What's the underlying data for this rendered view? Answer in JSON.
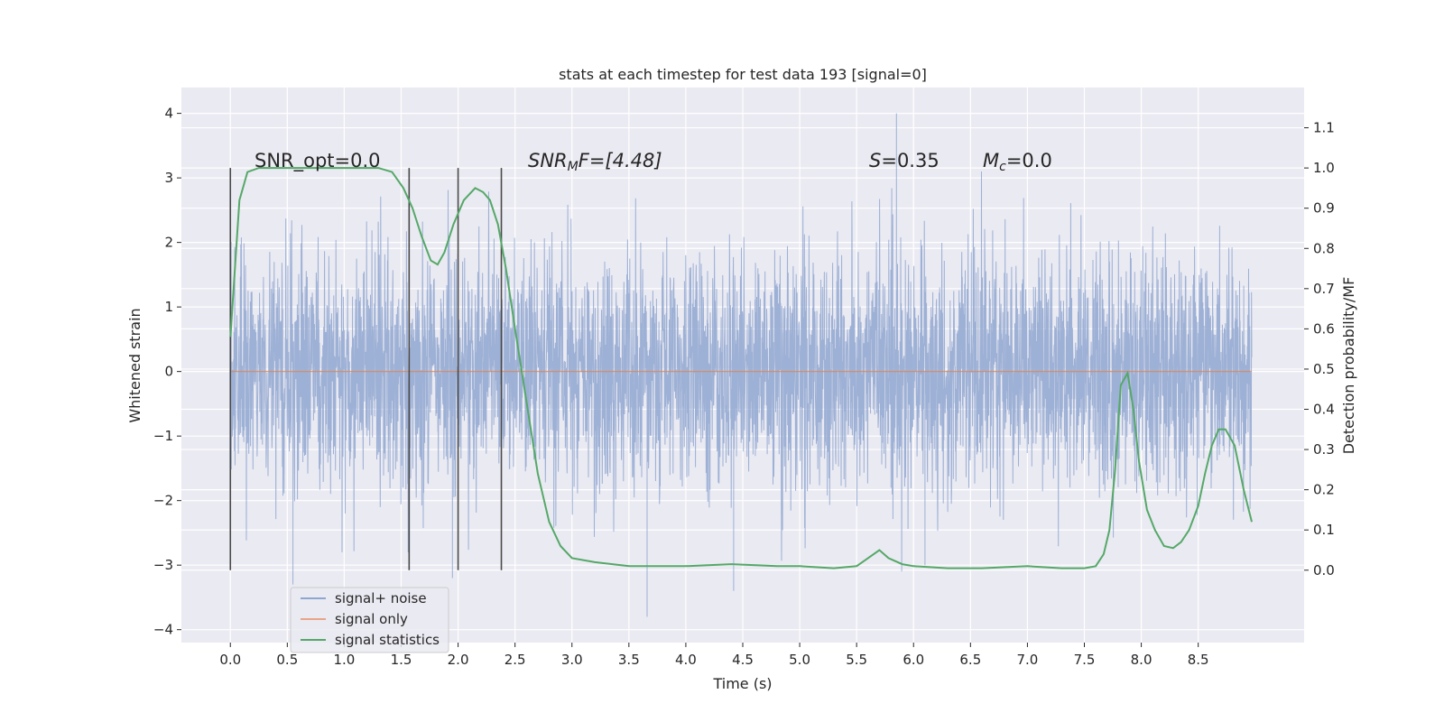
{
  "chart_data": {
    "type": "line",
    "title": "stats at each timestep for test data 193 [signal=0]",
    "xlabel": "Time (s)",
    "ylabel": "Whitened strain",
    "ylabel_right": "Detection probability/MF",
    "xlim": [
      -0.43,
      9.43
    ],
    "ylim": [
      -4.2,
      4.4
    ],
    "ylim_right": [
      -0.18,
      1.2
    ],
    "x_ticks": [
      "0.0",
      "0.5",
      "1.0",
      "1.5",
      "2.0",
      "2.5",
      "3.0",
      "3.5",
      "4.0",
      "4.5",
      "5.0",
      "5.5",
      "6.0",
      "6.5",
      "7.0",
      "7.5",
      "8.0",
      "8.5"
    ],
    "y_ticks": [
      "−4",
      "−3",
      "−2",
      "−1",
      "0",
      "1",
      "2",
      "3",
      "4"
    ],
    "y_right_ticks": [
      "0.0",
      "0.1",
      "0.2",
      "0.3",
      "0.4",
      "0.5",
      "0.6",
      "0.7",
      "0.8",
      "0.9",
      "1.0",
      "1.1"
    ],
    "grid": true,
    "legend_position": "lower-left",
    "annotations": {
      "snr_opt": "SNR_opt=0.0",
      "snr_mf_main": "SNR",
      "snr_mf_sub": "M",
      "snr_mf_rest": "F=[4.48]",
      "s_sym": "S",
      "s_val": "=0.35",
      "mc_main": "M",
      "mc_sub": "c",
      "mc_val": "=0.0"
    },
    "vertical_markers": [
      0.0,
      1.57,
      2.0,
      2.38
    ],
    "series": [
      {
        "name": "signal+ noise",
        "color": "#8fa6d0",
        "description_only": false,
        "envelope": {
          "t_start": 0.0,
          "t_end": 8.97,
          "typical_peak": 2.3,
          "extreme_max": 4.0,
          "extreme_min": -3.8
        }
      },
      {
        "name": "signal only",
        "color": "#dd8452",
        "x": [
          0.0,
          8.97
        ],
        "y": [
          0.0,
          0.0
        ]
      },
      {
        "name": "signal statistics",
        "color": "#55a868",
        "axis": "right",
        "x": [
          0.0,
          0.08,
          0.15,
          0.25,
          0.4,
          0.6,
          0.8,
          1.0,
          1.2,
          1.3,
          1.42,
          1.52,
          1.6,
          1.68,
          1.76,
          1.82,
          1.88,
          1.96,
          2.05,
          2.15,
          2.22,
          2.28,
          2.35,
          2.42,
          2.5,
          2.6,
          2.7,
          2.8,
          2.9,
          3.0,
          3.2,
          3.5,
          4.0,
          4.4,
          4.8,
          5.0,
          5.3,
          5.5,
          5.6,
          5.7,
          5.78,
          5.9,
          6.0,
          6.3,
          6.6,
          7.0,
          7.3,
          7.5,
          7.6,
          7.67,
          7.72,
          7.77,
          7.82,
          7.88,
          7.93,
          7.98,
          8.05,
          8.12,
          8.2,
          8.28,
          8.35,
          8.42,
          8.5,
          8.56,
          8.62,
          8.68,
          8.74,
          8.82,
          8.9,
          8.97
        ],
        "y": [
          0.58,
          0.92,
          0.99,
          1.0,
          1.0,
          1.0,
          1.0,
          1.0,
          1.0,
          1.0,
          0.99,
          0.95,
          0.9,
          0.83,
          0.77,
          0.76,
          0.79,
          0.86,
          0.92,
          0.95,
          0.94,
          0.92,
          0.86,
          0.75,
          0.6,
          0.42,
          0.24,
          0.12,
          0.06,
          0.03,
          0.02,
          0.01,
          0.01,
          0.015,
          0.01,
          0.01,
          0.005,
          0.01,
          0.03,
          0.05,
          0.03,
          0.015,
          0.01,
          0.005,
          0.005,
          0.01,
          0.005,
          0.005,
          0.01,
          0.04,
          0.1,
          0.25,
          0.46,
          0.49,
          0.4,
          0.27,
          0.15,
          0.1,
          0.06,
          0.055,
          0.07,
          0.1,
          0.16,
          0.24,
          0.31,
          0.35,
          0.35,
          0.31,
          0.2,
          0.12
        ]
      }
    ]
  }
}
